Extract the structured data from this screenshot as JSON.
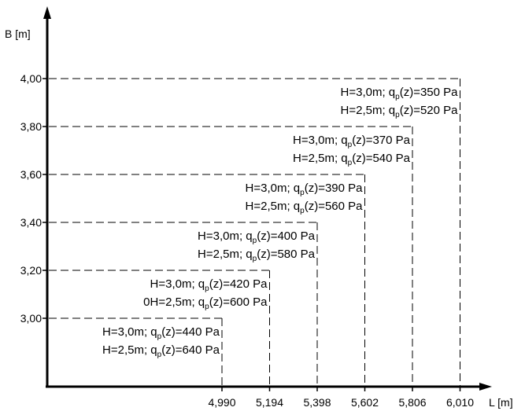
{
  "chart_data": {
    "type": "diagram",
    "x_axis_label": "L [m]",
    "y_axis_label": "B [m]",
    "x_tick_labels": [
      "4,990",
      "5,194",
      "5,398",
      "5,602",
      "5,806",
      "6,010"
    ],
    "y_tick_labels": [
      "3,00",
      "3,20",
      "3,40",
      "3,60",
      "3,80",
      "4,00"
    ],
    "regions": [
      {
        "L": 4.99,
        "B": 3.0,
        "line1": {
          "prefix": "H=3,0m; q",
          "sub": "p",
          "suffix": "(z)=440 Pa"
        },
        "line2": {
          "prefix": "H=2,5m; q",
          "sub": "p",
          "suffix": "(z)=640 Pa"
        }
      },
      {
        "L": 5.194,
        "B": 3.2,
        "line1": {
          "prefix": "H=3,0m; q",
          "sub": "p",
          "suffix": "(z)=420 Pa"
        },
        "line2": {
          "prefix": "0H=2,5m; q",
          "sub": "p",
          "suffix": "(z)=600 Pa"
        }
      },
      {
        "L": 5.398,
        "B": 3.4,
        "line1": {
          "prefix": "H=3,0m; q",
          "sub": "p",
          "suffix": "(z)=400 Pa"
        },
        "line2": {
          "prefix": "H=2,5m; q",
          "sub": "p",
          "suffix": "(z)=580 Pa"
        }
      },
      {
        "L": 5.602,
        "B": 3.6,
        "line1": {
          "prefix": "H=3,0m; q",
          "sub": "p",
          "suffix": "(z)=390 Pa"
        },
        "line2": {
          "prefix": "H=2,5m; q",
          "sub": "p",
          "suffix": "(z)=560 Pa"
        }
      },
      {
        "L": 5.806,
        "B": 3.8,
        "line1": {
          "prefix": "H=3,0m; q",
          "sub": "p",
          "suffix": "(z)=370 Pa"
        },
        "line2": {
          "prefix": "H=2,5m; q",
          "sub": "p",
          "suffix": "(z)=540 Pa"
        }
      },
      {
        "L": 6.01,
        "B": 4.0,
        "line1": {
          "prefix": "H=3,0m; q",
          "sub": "p",
          "suffix": "(z)=350 Pa"
        },
        "line2": {
          "prefix": "H=2,5m; q",
          "sub": "p",
          "suffix": "(z)=520 Pa"
        }
      }
    ]
  }
}
